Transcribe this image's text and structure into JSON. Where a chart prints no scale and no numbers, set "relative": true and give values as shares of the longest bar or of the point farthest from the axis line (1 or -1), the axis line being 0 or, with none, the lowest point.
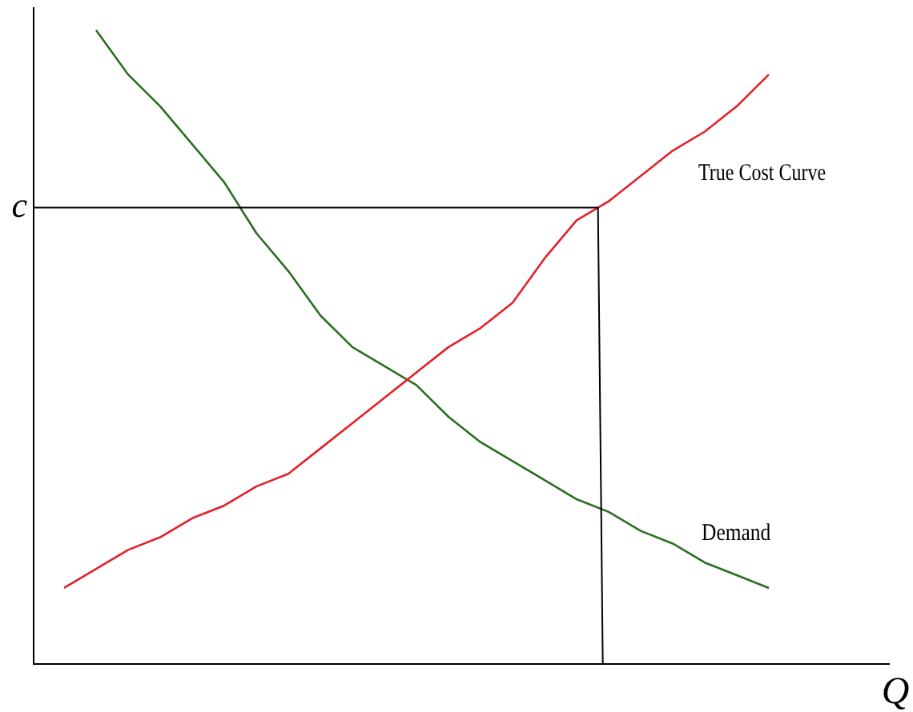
{
  "chart_data": {
    "type": "line",
    "relative": true,
    "xlabel": "Q",
    "marker": "none",
    "legend": false,
    "grid": false,
    "categories": [
      null,
      null,
      null,
      null,
      null,
      null,
      null,
      null,
      null,
      null,
      null,
      null,
      null,
      null,
      null,
      null,
      null,
      null,
      null,
      null,
      null,
      null,
      null
    ],
    "series": [
      {
        "name": "True Cost Curve",
        "color": "#e0202a",
        "values": [
          0.12,
          0.15,
          0.18,
          0.2,
          0.23,
          0.25,
          0.28,
          0.3,
          0.34,
          0.38,
          0.42,
          0.46,
          0.5,
          0.53,
          0.57,
          0.64,
          0.7,
          0.73,
          0.77,
          0.81,
          0.84,
          0.88,
          0.93
        ]
      },
      {
        "name": "Demand",
        "color": "#2a6e22",
        "values": [
          null,
          1,
          0.93,
          0.88,
          0.82,
          0.76,
          0.68,
          0.62,
          0.55,
          0.5,
          0.47,
          0.44,
          0.39,
          0.35,
          0.32,
          0.29,
          0.26,
          0.24,
          0.21,
          0.19,
          0.16,
          0.14,
          0.12
        ]
      }
    ],
    "ref_lines": [
      {
        "axis": "y",
        "value": 0.72,
        "label": "c",
        "color": "#000000"
      }
    ]
  }
}
